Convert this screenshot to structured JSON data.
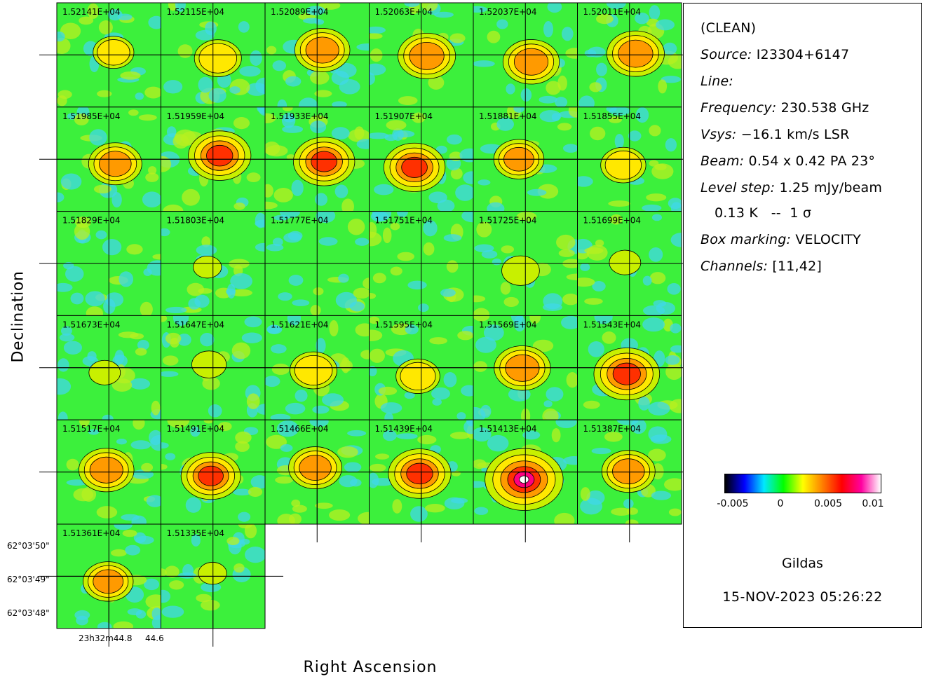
{
  "chart_data": {
    "type": "heatmap",
    "title": "(CLEAN)",
    "xlabel": "Right Ascension",
    "ylabel": "Declination",
    "panel_labels": [
      "1.52141E+04",
      "1.52115E+04",
      "1.52089E+04",
      "1.52063E+04",
      "1.52037E+04",
      "1.52011E+04",
      "1.51985E+04",
      "1.51959E+04",
      "1.51933E+04",
      "1.51907E+04",
      "1.51881E+04",
      "1.51855E+04",
      "1.51829E+04",
      "1.51803E+04",
      "1.51777E+04",
      "1.51751E+04",
      "1.51725E+04",
      "1.51699E+04",
      "1.51673E+04",
      "1.51647E+04",
      "1.51621E+04",
      "1.51595E+04",
      "1.51569E+04",
      "1.51543E+04",
      "1.51517E+04",
      "1.51491E+04",
      "1.51466E+04",
      "1.51439E+04",
      "1.51413E+04",
      "1.51387E+04",
      "1.51361E+04",
      "1.51335E+04"
    ],
    "panel_peak_intensity": [
      0.0045,
      0.0055,
      0.0068,
      0.0072,
      0.007,
      0.0072,
      0.0065,
      0.008,
      0.0078,
      0.0078,
      0.006,
      0.0052,
      0.002,
      0.0025,
      0.002,
      0.002,
      0.004,
      0.003,
      0.003,
      0.0035,
      0.0055,
      0.005,
      0.007,
      0.0085,
      0.0068,
      0.0075,
      0.0065,
      0.008,
      0.0105,
      0.0065,
      0.006,
      0.0025
    ],
    "dec_tick_labels": [
      "62°03'50\"",
      "62°03'49\"",
      "62°03'48\""
    ],
    "ra_tick_labels": [
      "23h32m44.8",
      "44.6"
    ],
    "colorbar": {
      "min": -0.005,
      "max": 0.011,
      "ticks": [
        "-0.005",
        "0",
        "0.005",
        "0.01"
      ],
      "tick_values": [
        -0.005,
        0,
        0.005,
        0.01
      ],
      "colors": [
        "#000000",
        "#0000ff",
        "#00e8ff",
        "#00ff00",
        "#ffff00",
        "#ff8000",
        "#ff0000",
        "#ff00a0",
        "#ffffff"
      ]
    }
  },
  "info": {
    "mode": "(CLEAN)",
    "source_key": "Source:",
    "source_val": "I23304+6147",
    "line_key": "Line:",
    "line_val": "",
    "freq_key": "Frequency:",
    "freq_val": "230.538 GHz",
    "vsys_key": "Vsys:",
    "vsys_val": "−16.1 km/s LSR",
    "beam_key": "Beam:",
    "beam_val": "0.54 x 0.42 PA 23°",
    "level_key": "Level step:",
    "level_val": "1.25 mJy/beam",
    "level_line2": "0.13 K   --  1 σ",
    "box_key": "Box marking:",
    "box_val": "VELOCITY",
    "chan_key": "Channels:",
    "chan_val": "[11,42]"
  },
  "footer": {
    "software": "Gildas",
    "datestamp": "15-NOV-2023 05:26:22"
  }
}
